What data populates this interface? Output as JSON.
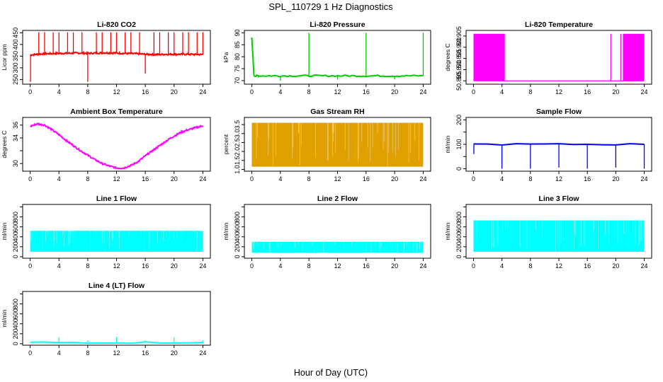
{
  "figure": {
    "title": "SPL_110729  1 Hz Diagnostics",
    "xlabel": "Hour of Day (UTC)"
  },
  "chart_data": [
    {
      "type": "line",
      "title": "Li-820 CO2",
      "ylabel": "Licor ppm",
      "color": "#ff0000",
      "xlim": [
        0,
        24
      ],
      "ylim": [
        230,
        460
      ],
      "xticks": [
        0,
        4,
        8,
        12,
        16,
        20,
        24
      ],
      "yticks": [
        250,
        300,
        350,
        400,
        450
      ],
      "x": [
        0,
        1,
        2,
        3,
        4,
        5,
        6,
        7,
        8,
        9,
        10,
        11,
        12,
        13,
        14,
        15,
        16,
        17,
        18,
        19,
        20,
        21,
        22,
        23,
        24
      ],
      "y": [
        355,
        358,
        360,
        361,
        362,
        362,
        363,
        363,
        362,
        363,
        364,
        364,
        363,
        362,
        361,
        360,
        358,
        357,
        357,
        358,
        358,
        358,
        358,
        357,
        357
      ],
      "spikes": [
        {
          "x": 0.05,
          "y": 240
        },
        {
          "x": 1.2,
          "y": 452
        },
        {
          "x": 2.0,
          "y": 452
        },
        {
          "x": 3.2,
          "y": 452
        },
        {
          "x": 4.0,
          "y": 452
        },
        {
          "x": 5.2,
          "y": 452
        },
        {
          "x": 6.0,
          "y": 452
        },
        {
          "x": 7.2,
          "y": 452
        },
        {
          "x": 8.0,
          "y": 240
        },
        {
          "x": 9.2,
          "y": 452
        },
        {
          "x": 10.0,
          "y": 452
        },
        {
          "x": 11.2,
          "y": 452
        },
        {
          "x": 12.0,
          "y": 452
        },
        {
          "x": 13.2,
          "y": 452
        },
        {
          "x": 14.0,
          "y": 452
        },
        {
          "x": 15.2,
          "y": 452
        },
        {
          "x": 16.0,
          "y": 275
        },
        {
          "x": 17.2,
          "y": 452
        },
        {
          "x": 18.0,
          "y": 452
        },
        {
          "x": 19.2,
          "y": 452
        },
        {
          "x": 20.0,
          "y": 452
        },
        {
          "x": 21.2,
          "y": 452
        },
        {
          "x": 22.0,
          "y": 452
        },
        {
          "x": 23.2,
          "y": 452
        },
        {
          "x": 24.0,
          "y": 452
        }
      ]
    },
    {
      "type": "line",
      "title": "Li-820 Pressure",
      "ylabel": "kPa",
      "color": "#00cc00",
      "xlim": [
        0,
        24
      ],
      "ylim": [
        68.5,
        91
      ],
      "xticks": [
        0,
        4,
        8,
        12,
        16,
        20,
        24
      ],
      "yticks": [
        70,
        75,
        80,
        85,
        90
      ],
      "x": [
        0,
        0.3,
        1,
        4,
        8,
        12,
        16,
        20,
        24
      ],
      "y": [
        88,
        72,
        72,
        72,
        72,
        72,
        72,
        72,
        72
      ],
      "spikes": [
        {
          "x": 0.0,
          "y": 88
        },
        {
          "x": 8.0,
          "y": 90
        },
        {
          "x": 16.0,
          "y": 90
        },
        {
          "x": 24.0,
          "y": 90
        },
        {
          "x": 4.0,
          "y": 70
        },
        {
          "x": 12.0,
          "y": 70.5
        },
        {
          "x": 20.0,
          "y": 70.5
        }
      ]
    },
    {
      "type": "area",
      "title": "Li-820 Temperature",
      "ylabel": "degrees C",
      "color": "#ff00ff",
      "xlim": [
        0,
        24
      ],
      "ylim": [
        50.8835,
        50.9075
      ],
      "xticks": [
        0,
        4,
        8,
        12,
        16,
        20,
        24
      ],
      "yticks": [
        50.885,
        50.89,
        50.895,
        50.9,
        50.905
      ],
      "ytick_labels": [
        "50.885",
        "50.890",
        "50.895",
        "50.900",
        "50.905"
      ],
      "baseline": 50.885,
      "bands": [
        {
          "x0": 0,
          "x1": 4.4,
          "low": 50.885,
          "high": 50.906
        },
        {
          "x0": 21.0,
          "x1": 24,
          "low": 50.885,
          "high": 50.906
        }
      ],
      "spikes": [
        {
          "x": 19.3,
          "y": 50.906
        },
        {
          "x": 20.7,
          "y": 50.906
        }
      ]
    },
    {
      "type": "line",
      "title": "Ambient Box Temperature",
      "ylabel": "degrees C",
      "color": "#ff00ff",
      "xlim": [
        0,
        24
      ],
      "ylim": [
        28.8,
        37.2
      ],
      "xticks": [
        0,
        4,
        8,
        12,
        16,
        20,
        24
      ],
      "yticks": [
        30,
        32,
        34,
        36
      ],
      "ytick_labels": [
        "30",
        "",
        "34",
        "36"
      ],
      "x": [
        0,
        1,
        2,
        3,
        4,
        5,
        6,
        7,
        8,
        9,
        10,
        11,
        12,
        13,
        14,
        15,
        16,
        17,
        18,
        19,
        20,
        21,
        22,
        23,
        24
      ],
      "y": [
        35.8,
        36.2,
        36.0,
        35.3,
        34.5,
        33.6,
        32.8,
        32.0,
        31.3,
        30.6,
        30.0,
        29.6,
        29.3,
        29.3,
        29.7,
        30.3,
        31.2,
        32.0,
        32.8,
        33.6,
        34.3,
        34.9,
        35.3,
        35.6,
        35.9
      ]
    },
    {
      "type": "area",
      "title": "Gas Stream RH",
      "ylabel": "percent",
      "color": "#e0a000",
      "xlim": [
        0,
        24
      ],
      "ylim": [
        0.9,
        3.9
      ],
      "xticks": [
        0,
        4,
        8,
        12,
        16,
        20,
        24
      ],
      "yticks": [
        1.0,
        1.5,
        2.0,
        2.5,
        3.0,
        3.5
      ],
      "ytick_labels": [
        "1.0",
        "1.5",
        "2.0",
        "2.5",
        "3.0",
        "3.5"
      ],
      "bands": [
        {
          "x0": 0,
          "x1": 24,
          "low": 1.15,
          "high": 3.6
        }
      ]
    },
    {
      "type": "line",
      "title": "Sample Flow",
      "ylabel": "ml/min",
      "color": "#0000ff",
      "xlim": [
        0,
        24
      ],
      "ylim": [
        -10,
        210
      ],
      "xticks": [
        0,
        4,
        8,
        12,
        16,
        20,
        24
      ],
      "yticks": [
        0,
        50,
        100,
        150,
        200
      ],
      "ytick_labels": [
        "0",
        "",
        "100",
        "",
        "200"
      ],
      "x": [
        0,
        24
      ],
      "y": [
        100,
        100
      ],
      "spikes": [
        {
          "x": 0.05,
          "y": 60
        },
        {
          "x": 4.0,
          "y": 0
        },
        {
          "x": 8.0,
          "y": 0
        },
        {
          "x": 12.0,
          "y": 5
        },
        {
          "x": 16.0,
          "y": 0
        },
        {
          "x": 20.0,
          "y": 5
        },
        {
          "x": 24.0,
          "y": 0
        }
      ]
    },
    {
      "type": "area",
      "title": "Line 1 Flow",
      "ylabel": "ml/min",
      "color": "#00ffff",
      "xlim": [
        0,
        24
      ],
      "ylim": [
        -30,
        1050
      ],
      "xticks": [
        0,
        4,
        8,
        12,
        16,
        20,
        24
      ],
      "yticks": [
        0,
        200,
        400,
        600,
        800,
        1000
      ],
      "ytick_labels": [
        "0",
        "200",
        "400",
        "600",
        "800",
        ""
      ],
      "bands": [
        {
          "x0": 0,
          "x1": 24,
          "low": 100,
          "high": 520
        }
      ]
    },
    {
      "type": "area",
      "title": "Line 2 Flow",
      "ylabel": "ml/min",
      "color": "#00ffff",
      "xlim": [
        0,
        24
      ],
      "ylim": [
        -30,
        1050
      ],
      "xticks": [
        0,
        4,
        8,
        12,
        16,
        20,
        24
      ],
      "yticks": [
        0,
        200,
        400,
        600,
        800,
        1000
      ],
      "ytick_labels": [
        "0",
        "200",
        "400",
        "600",
        "800",
        ""
      ],
      "bands": [
        {
          "x0": 0,
          "x1": 24,
          "low": 80,
          "high": 300
        }
      ]
    },
    {
      "type": "area",
      "title": "Line 3 Flow",
      "ylabel": "ml/min",
      "color": "#00ffff",
      "xlim": [
        0,
        24
      ],
      "ylim": [
        -30,
        1050
      ],
      "xticks": [
        0,
        4,
        8,
        12,
        16,
        20,
        24
      ],
      "yticks": [
        0,
        200,
        400,
        600,
        800,
        1000
      ],
      "ytick_labels": [
        "0",
        "200",
        "400",
        "600",
        "800",
        ""
      ],
      "bands": [
        {
          "x0": 0,
          "x1": 24,
          "low": 100,
          "high": 730
        }
      ]
    },
    {
      "type": "line",
      "title": "Line 4 (LT) Flow",
      "ylabel": "ml/min",
      "color": "#00ffff",
      "xlim": [
        0,
        24
      ],
      "ylim": [
        -30,
        1050
      ],
      "xticks": [
        0,
        4,
        8,
        12,
        16,
        20,
        24
      ],
      "yticks": [
        0,
        200,
        400,
        600,
        800,
        1000
      ],
      "ytick_labels": [
        "0",
        "200",
        "400",
        "600",
        "800",
        ""
      ],
      "x": [
        0,
        24
      ],
      "y": [
        25,
        25
      ],
      "spikes": [
        {
          "x": 4.0,
          "y": 130
        },
        {
          "x": 8.0,
          "y": 70
        },
        {
          "x": 12.0,
          "y": 130
        },
        {
          "x": 16.0,
          "y": 70
        },
        {
          "x": 20.0,
          "y": 130
        },
        {
          "x": 24.0,
          "y": 70
        }
      ]
    }
  ]
}
